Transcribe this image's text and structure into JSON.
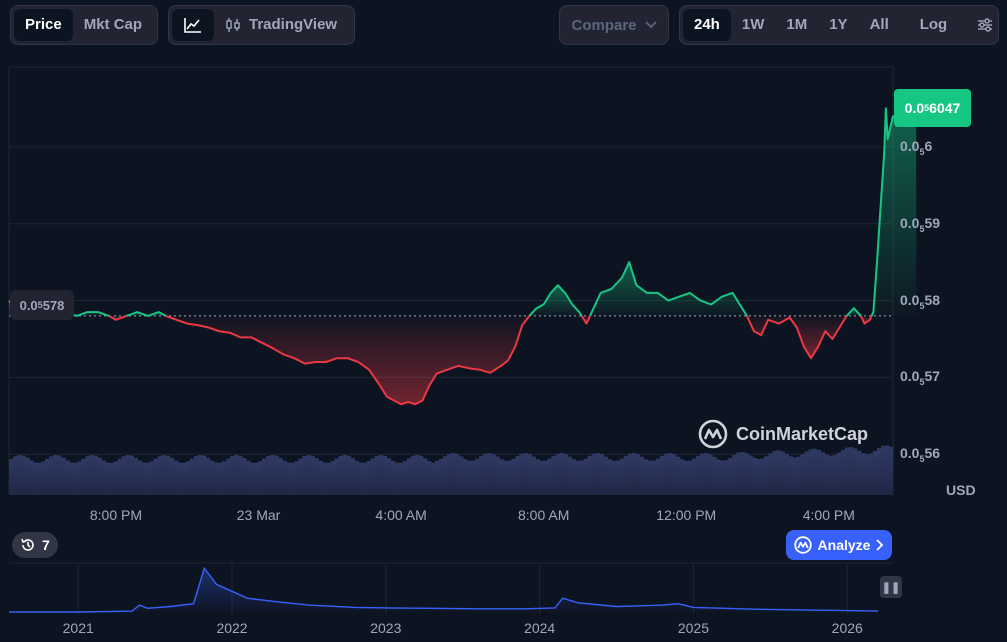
{
  "toolbar": {
    "view_tabs": [
      {
        "label": "Price",
        "active": true
      },
      {
        "label": "Mkt Cap",
        "active": false
      }
    ],
    "chart_type": {
      "line_icon": "line-chart-icon",
      "tradingview_icon": "candlestick-icon",
      "tradingview_label": "TradingView"
    },
    "compare_label": "Compare",
    "ranges": [
      {
        "label": "24h",
        "active": true
      },
      {
        "label": "1W",
        "active": false
      },
      {
        "label": "1M",
        "active": false
      },
      {
        "label": "1Y",
        "active": false
      },
      {
        "label": "All",
        "active": false
      }
    ],
    "log_label": "Log",
    "settings_icon": "sliders-icon"
  },
  "current_price_label": {
    "prefix": "0.0",
    "sub": "5",
    "digits": "6047"
  },
  "reference_price_label": {
    "prefix": "0.0",
    "sub": "5",
    "digits": "578"
  },
  "currency": "USD",
  "watermark": "CoinMarketCap",
  "history_count": "7",
  "analyze_label": "Analyze",
  "colors": {
    "up": "#16c784",
    "down": "#ea3943",
    "background": "#0d1421",
    "volume": "#2a3357",
    "overview_line": "#3861fb",
    "accent": "#3861fb"
  },
  "chart_data": [
    {
      "type": "line",
      "ylabel": "USD",
      "y_ticks": [
        {
          "prefix": "0.0",
          "sub": "5",
          "digits": "6",
          "value": 6e-06
        },
        {
          "prefix": "0.0",
          "sub": "5",
          "digits": "59",
          "value": 5.9e-06
        },
        {
          "prefix": "0.0",
          "sub": "5",
          "digits": "58",
          "value": 5.8e-06
        },
        {
          "prefix": "0.0",
          "sub": "5",
          "digits": "57",
          "value": 5.7e-06
        },
        {
          "prefix": "0.0",
          "sub": "5",
          "digits": "56",
          "value": 5.6e-06
        }
      ],
      "ylim": [
        5.56e-06,
        6.1e-06
      ],
      "xlim_hours": [
        17,
        41.8
      ],
      "x_ticks": [
        {
          "label": "8:00 PM",
          "hour": 20
        },
        {
          "label": "23 Mar",
          "hour": 24
        },
        {
          "label": "4:00 AM",
          "hour": 28
        },
        {
          "label": "8:00 AM",
          "hour": 32
        },
        {
          "label": "12:00 PM",
          "hour": 36
        },
        {
          "label": "4:00 PM",
          "hour": 40
        }
      ],
      "baseline": 5.78e-06,
      "series": [
        {
          "points": [
            [
              17.0,
              5.8e-06
            ],
            [
              17.2,
              5.79e-06
            ],
            [
              17.4,
              5.79e-06
            ],
            [
              17.7,
              5.79e-06
            ],
            [
              18.0,
              5.79e-06
            ],
            [
              18.3,
              5.785e-06
            ],
            [
              18.6,
              5.785e-06
            ],
            [
              18.9,
              5.78e-06
            ],
            [
              19.2,
              5.785e-06
            ],
            [
              19.5,
              5.785e-06
            ],
            [
              19.8,
              5.78e-06
            ],
            [
              20.0,
              5.775e-06
            ],
            [
              20.3,
              5.78e-06
            ],
            [
              20.6,
              5.785e-06
            ],
            [
              20.9,
              5.78e-06
            ],
            [
              21.2,
              5.785e-06
            ],
            [
              21.4,
              5.78e-06
            ],
            [
              21.7,
              5.775e-06
            ],
            [
              22.0,
              5.77e-06
            ],
            [
              22.3,
              5.768e-06
            ],
            [
              22.6,
              5.765e-06
            ],
            [
              22.9,
              5.76e-06
            ],
            [
              23.2,
              5.758e-06
            ],
            [
              23.5,
              5.752e-06
            ],
            [
              23.8,
              5.752e-06
            ],
            [
              24.1,
              5.745e-06
            ],
            [
              24.4,
              5.738e-06
            ],
            [
              24.7,
              5.73e-06
            ],
            [
              25.0,
              5.725e-06
            ],
            [
              25.3,
              5.718e-06
            ],
            [
              25.6,
              5.72e-06
            ],
            [
              25.9,
              5.72e-06
            ],
            [
              26.2,
              5.725e-06
            ],
            [
              26.5,
              5.725e-06
            ],
            [
              26.8,
              5.72e-06
            ],
            [
              27.1,
              5.71e-06
            ],
            [
              27.4,
              5.69e-06
            ],
            [
              27.6,
              5.675e-06
            ],
            [
              27.8,
              5.67e-06
            ],
            [
              28.0,
              5.665e-06
            ],
            [
              28.2,
              5.668e-06
            ],
            [
              28.4,
              5.665e-06
            ],
            [
              28.6,
              5.67e-06
            ],
            [
              28.8,
              5.69e-06
            ],
            [
              29.0,
              5.705e-06
            ],
            [
              29.3,
              5.71e-06
            ],
            [
              29.6,
              5.715e-06
            ],
            [
              29.9,
              5.712e-06
            ],
            [
              30.2,
              5.71e-06
            ],
            [
              30.5,
              5.706e-06
            ],
            [
              30.8,
              5.715e-06
            ],
            [
              31.0,
              5.722e-06
            ],
            [
              31.2,
              5.74e-06
            ],
            [
              31.4,
              5.768e-06
            ],
            [
              31.6,
              5.78e-06
            ],
            [
              31.8,
              5.79e-06
            ],
            [
              32.0,
              5.795e-06
            ],
            [
              32.2,
              5.81e-06
            ],
            [
              32.4,
              5.82e-06
            ],
            [
              32.6,
              5.81e-06
            ],
            [
              32.8,
              5.795e-06
            ],
            [
              33.0,
              5.785e-06
            ],
            [
              33.2,
              5.77e-06
            ],
            [
              33.4,
              5.79e-06
            ],
            [
              33.6,
              5.81e-06
            ],
            [
              33.9,
              5.815e-06
            ],
            [
              34.2,
              5.83e-06
            ],
            [
              34.4,
              5.85e-06
            ],
            [
              34.6,
              5.82e-06
            ],
            [
              34.9,
              5.81e-06
            ],
            [
              35.2,
              5.81e-06
            ],
            [
              35.5,
              5.8e-06
            ],
            [
              35.8,
              5.805e-06
            ],
            [
              36.1,
              5.81e-06
            ],
            [
              36.4,
              5.8e-06
            ],
            [
              36.7,
              5.795e-06
            ],
            [
              37.0,
              5.805e-06
            ],
            [
              37.3,
              5.81e-06
            ],
            [
              37.5,
              5.795e-06
            ],
            [
              37.7,
              5.78e-06
            ],
            [
              37.9,
              5.76e-06
            ],
            [
              38.1,
              5.755e-06
            ],
            [
              38.3,
              5.775e-06
            ],
            [
              38.6,
              5.77e-06
            ],
            [
              38.9,
              5.778e-06
            ],
            [
              39.1,
              5.765e-06
            ],
            [
              39.3,
              5.74e-06
            ],
            [
              39.5,
              5.725e-06
            ],
            [
              39.7,
              5.74e-06
            ],
            [
              39.9,
              5.76e-06
            ],
            [
              40.1,
              5.75e-06
            ],
            [
              40.3,
              5.765e-06
            ],
            [
              40.5,
              5.78e-06
            ],
            [
              40.7,
              5.79e-06
            ],
            [
              40.9,
              5.78e-06
            ],
            [
              41.0,
              5.77e-06
            ],
            [
              41.15,
              5.775e-06
            ],
            [
              41.25,
              5.785e-06
            ],
            [
              41.35,
              5.85e-06
            ],
            [
              41.45,
              5.92e-06
            ],
            [
              41.55,
              5.99e-06
            ],
            [
              41.6,
              6.05e-06
            ],
            [
              41.65,
              6.01e-06
            ],
            [
              41.7,
              6.02e-06
            ],
            [
              41.8,
              6.04e-06
            ],
            [
              41.9,
              6.035e-06
            ],
            [
              42.0,
              6.03e-06
            ],
            [
              42.1,
              6.05e-06
            ],
            [
              42.2,
              6.055e-06
            ],
            [
              42.3,
              6.06e-06
            ],
            [
              42.4,
              6.045e-06
            ],
            [
              42.45,
              6.047e-06
            ]
          ]
        }
      ],
      "volume_band": true
    },
    {
      "type": "area",
      "x_ticks": [
        {
          "label": "2021",
          "year": 2021
        },
        {
          "label": "2022",
          "year": 2022
        },
        {
          "label": "2023",
          "year": 2023
        },
        {
          "label": "2024",
          "year": 2024
        },
        {
          "label": "2025",
          "year": 2025
        },
        {
          "label": "2026",
          "year": 2026
        }
      ],
      "xlim": [
        2020.55,
        2026.2
      ],
      "series": [
        {
          "points": [
            [
              2020.55,
              0.0
            ],
            [
              2021.0,
              0.0
            ],
            [
              2021.2,
              0.01
            ],
            [
              2021.35,
              0.02
            ],
            [
              2021.4,
              0.15
            ],
            [
              2021.45,
              0.08
            ],
            [
              2021.6,
              0.12
            ],
            [
              2021.75,
              0.18
            ],
            [
              2021.82,
              0.95
            ],
            [
              2021.9,
              0.6
            ],
            [
              2022.0,
              0.45
            ],
            [
              2022.1,
              0.3
            ],
            [
              2022.3,
              0.22
            ],
            [
              2022.5,
              0.15
            ],
            [
              2022.8,
              0.1
            ],
            [
              2023.0,
              0.09
            ],
            [
              2023.3,
              0.08
            ],
            [
              2023.6,
              0.07
            ],
            [
              2023.9,
              0.07
            ],
            [
              2024.1,
              0.09
            ],
            [
              2024.15,
              0.3
            ],
            [
              2024.25,
              0.2
            ],
            [
              2024.5,
              0.12
            ],
            [
              2024.8,
              0.15
            ],
            [
              2024.9,
              0.18
            ],
            [
              2025.0,
              0.1
            ],
            [
              2025.2,
              0.08
            ],
            [
              2025.4,
              0.06
            ],
            [
              2025.6,
              0.05
            ],
            [
              2025.8,
              0.04
            ],
            [
              2026.0,
              0.03
            ],
            [
              2026.2,
              0.02
            ]
          ]
        }
      ]
    }
  ]
}
